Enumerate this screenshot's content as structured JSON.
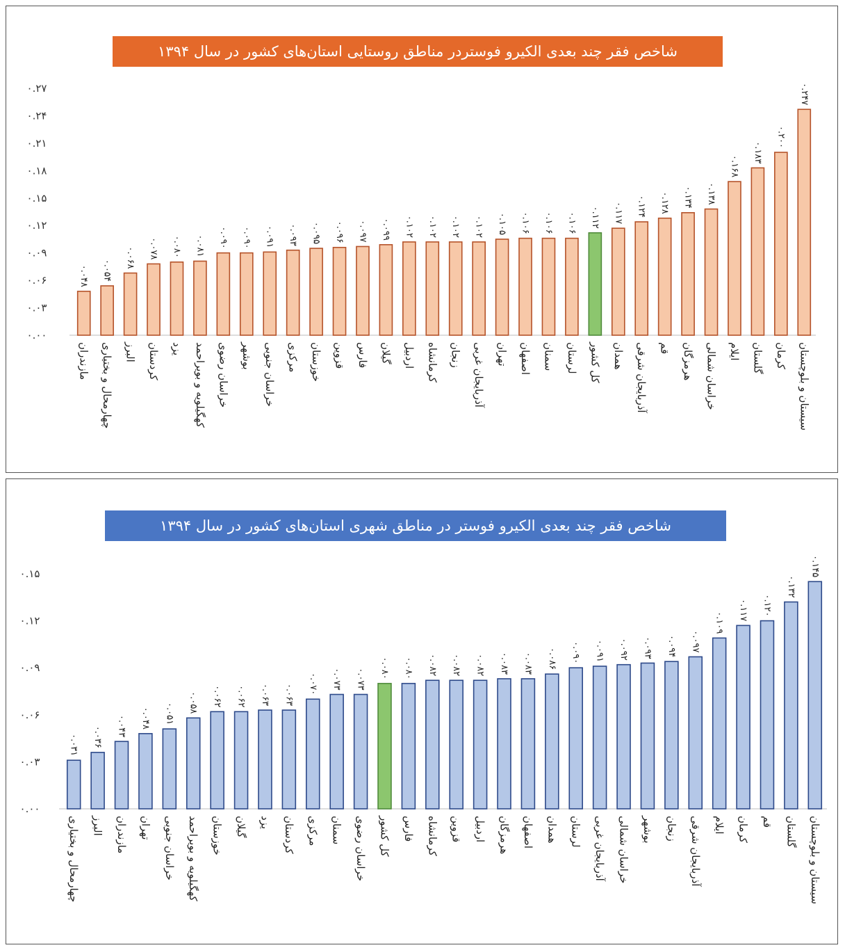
{
  "chart_data": [
    {
      "type": "bar",
      "title": "شاخص فقر چند بعدی الکیرو فوستردر مناطق روستایی استان‌های کشور در سال ۱۳۹۴",
      "categories": [
        "مازندران",
        "چهارمحال و بختیاری",
        "البرز",
        "کردستان",
        "یزد",
        "کهگیلویه و بویراحمد",
        "خراسان رضوی",
        "بوشهر",
        "خراسان جنوبی",
        "مرکزی",
        "خوزستان",
        "قزوین",
        "فارس",
        "گیلان",
        "اردبیل",
        "کرمانشاه",
        "زنجان",
        "آذربایجان غربی",
        "تهران",
        "اصفهان",
        "سمنان",
        "لرستان",
        "کل کشور",
        "همدان",
        "آذربایجان شرقی",
        "قم",
        "هرمزگان",
        "خراسان شمالی",
        "ایلام",
        "گلستان",
        "کرمان",
        "سیستان و بلوچستان"
      ],
      "values": [
        0.048,
        0.054,
        0.068,
        0.078,
        0.08,
        0.081,
        0.09,
        0.09,
        0.091,
        0.093,
        0.095,
        0.096,
        0.097,
        0.099,
        0.102,
        0.102,
        0.102,
        0.102,
        0.105,
        0.106,
        0.106,
        0.106,
        0.112,
        0.117,
        0.124,
        0.128,
        0.134,
        0.138,
        0.168,
        0.183,
        0.2,
        0.247
      ],
      "data_labels": [
        "۰.۰۴۸",
        "۰.۰۵۴",
        "۰.۰۶۸",
        "۰.۰۷۸",
        "۰.۰۸۰",
        "۰.۰۸۱",
        "۰.۰۹۰",
        "۰.۰۹۰",
        "۰.۰۹۱",
        "۰.۰۹۳",
        "۰.۰۹۵",
        "۰.۰۹۶",
        "۰.۰۹۷",
        "۰.۰۹۹",
        "۰.۱۰۲",
        "۰.۱۰۲",
        "۰.۱۰۲",
        "۰.۱۰۲",
        "۰.۱۰۵",
        "۰.۱۰۶",
        "۰.۱۰۶",
        "۰.۱۰۶",
        "۰.۱۱۲",
        "۰.۱۱۷",
        "۰.۱۲۴",
        "۰.۱۲۸",
        "۰.۱۳۴",
        "۰.۱۳۸",
        "۰.۱۶۸",
        "۰.۱۸۳",
        "۰.۲۰۰",
        "۰.۲۴۷"
      ],
      "highlight_index": 22,
      "yticks": [
        "۰.۰۰",
        "۰.۰۳",
        "۰.۰۶",
        "۰.۰۹",
        "۰.۱۲",
        "۰.۱۵",
        "۰.۱۸",
        "۰.۲۱",
        "۰.۲۴",
        "۰.۲۷"
      ],
      "ylim": [
        0,
        0.27
      ],
      "grid": false,
      "colors": {
        "title_bg": "#e4692a",
        "bar_fill": "#f7c8a8",
        "bar_stroke": "#b5532a",
        "highlight_fill": "#8cc66e",
        "highlight_stroke": "#4f8a3b"
      }
    },
    {
      "type": "bar",
      "title": "شاخص فقر چند بعدی الکیرو فوستر در مناطق شهری استان‌های کشور در سال ۱۳۹۴",
      "categories": [
        "چهارمحال و بختیاری",
        "البرز",
        "مازندران",
        "تهران",
        "خراسان جنوبی",
        "کهگیلویه و بویراحمد",
        "خوزستان",
        "گیلان",
        "یزد",
        "کردستان",
        "مرکزی",
        "سمنان",
        "خراسان رضوی",
        "کل کشور",
        "فارس",
        "کرمانشاه",
        "قزوین",
        "اردبیل",
        "هرمزگان",
        "اصفهان",
        "همدان",
        "لرستان",
        "آذربایجان غربی",
        "خراسان شمالی",
        "بوشهر",
        "زنجان",
        "آذربایجان شرقی",
        "ایلام",
        "کرمان",
        "قم",
        "گلستان",
        "سیستان و بلوچستان"
      ],
      "values": [
        0.031,
        0.036,
        0.043,
        0.048,
        0.051,
        0.058,
        0.062,
        0.062,
        0.063,
        0.063,
        0.07,
        0.073,
        0.073,
        0.08,
        0.08,
        0.082,
        0.082,
        0.082,
        0.083,
        0.083,
        0.086,
        0.09,
        0.091,
        0.092,
        0.093,
        0.094,
        0.097,
        0.109,
        0.117,
        0.12,
        0.132,
        0.145
      ],
      "data_labels": [
        "۰.۰۳۱",
        "۰.۰۳۶",
        "۰.۰۴۳",
        "۰.۰۴۸",
        "۰.۰۵۱",
        "۰.۰۵۸",
        "۰.۰۶۲",
        "۰.۰۶۲",
        "۰.۰۶۳",
        "۰.۰۶۳",
        "۰.۰۷۰",
        "۰.۰۷۳",
        "۰.۰۷۳",
        "۰.۰۸۰",
        "۰.۰۸۰",
        "۰.۰۸۲",
        "۰.۰۸۲",
        "۰.۰۸۲",
        "۰.۰۸۳",
        "۰.۰۸۳",
        "۰.۰۸۶",
        "۰.۰۹۰",
        "۰.۰۹۱",
        "۰.۰۹۲",
        "۰.۰۹۳",
        "۰.۰۹۴",
        "۰.۰۹۷",
        "۰.۱۰۹",
        "۰.۱۱۷",
        "۰.۱۲۰",
        "۰.۱۳۲",
        "۰.۱۴۵"
      ],
      "highlight_index": 13,
      "yticks": [
        "۰.۰۰",
        "۰.۰۳",
        "۰.۰۶",
        "۰.۰۹",
        "۰.۱۲",
        "۰.۱۵"
      ],
      "ylim": [
        0,
        0.15
      ],
      "grid": false,
      "colors": {
        "title_bg": "#4a76c4",
        "bar_fill": "#b4c7e7",
        "bar_stroke": "#2e4a8a",
        "highlight_fill": "#8cc66e",
        "highlight_stroke": "#4f8a3b"
      }
    }
  ]
}
